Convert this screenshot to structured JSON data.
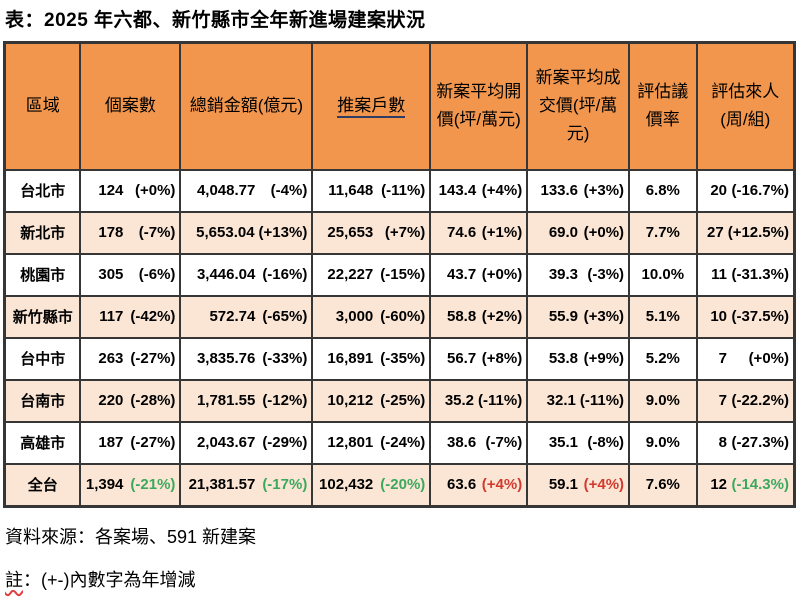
{
  "page": {
    "title": "表：2025 年六都、新竹縣市全年新進場建案狀況",
    "source_note": "資料來源：各案場、591 新建案",
    "note_head": "註",
    "note_rest": "：(+-)內數字為年增減"
  },
  "colors": {
    "header_bg": "#F2964E",
    "band_bg": "#FBE6D5",
    "row_bg": "#FFFFFF",
    "border": "#363636",
    "positive_red": "#D23A2E",
    "negative_green": "#3CA85E",
    "header_underline": "#2E3D66",
    "spellcheck_red": "#E04040"
  },
  "chart_data": {
    "type": "table",
    "title": "表：2025 年六都、新竹縣市全年新進場建案狀況",
    "columns": [
      {
        "label": "區域"
      },
      {
        "label": "個案數"
      },
      {
        "label": "總銷金額(億元)"
      },
      {
        "label": "推案戶數",
        "underline": true
      },
      {
        "label": "新案平均開價(坪/萬元)"
      },
      {
        "label": "新案平均成交價(坪/萬元)"
      },
      {
        "label": "評估議價率"
      },
      {
        "label": "評估來人(周/組)"
      }
    ],
    "rows": [
      {
        "region": "台北市",
        "cells": [
          {
            "value": "124",
            "pct": "(+0%)"
          },
          {
            "value": "4,048.77",
            "pct": "(-4%)"
          },
          {
            "value": "11,648",
            "pct": "(-11%)"
          },
          {
            "value": "143.4",
            "pct": "(+4%)"
          },
          {
            "value": "133.6",
            "pct": "(+3%)"
          },
          {
            "value": "6.8%"
          },
          {
            "value": "20",
            "pct": "(-16.7%)"
          }
        ]
      },
      {
        "region": "新北市",
        "cells": [
          {
            "value": "178",
            "pct": "(-7%)"
          },
          {
            "value": "5,653.04",
            "pct": "(+13%)"
          },
          {
            "value": "25,653",
            "pct": "(+7%)"
          },
          {
            "value": "74.6",
            "pct": "(+1%)"
          },
          {
            "value": "69.0",
            "pct": "(+0%)"
          },
          {
            "value": "7.7%"
          },
          {
            "value": "27",
            "pct": "(+12.5%)"
          }
        ]
      },
      {
        "region": "桃園市",
        "cells": [
          {
            "value": "305",
            "pct": "(-6%)"
          },
          {
            "value": "3,446.04",
            "pct": "(-16%)"
          },
          {
            "value": "22,227",
            "pct": "(-15%)"
          },
          {
            "value": "43.7",
            "pct": "(+0%)"
          },
          {
            "value": "39.3",
            "pct": "(-3%)"
          },
          {
            "value": "10.0%"
          },
          {
            "value": "11",
            "pct": "(-31.3%)"
          }
        ]
      },
      {
        "region": "新竹縣市",
        "cells": [
          {
            "value": "117",
            "pct": "(-42%)"
          },
          {
            "value": "572.74",
            "pct": "(-65%)"
          },
          {
            "value": "3,000",
            "pct": "(-60%)"
          },
          {
            "value": "58.8",
            "pct": "(+2%)"
          },
          {
            "value": "55.9",
            "pct": "(+3%)"
          },
          {
            "value": "5.1%"
          },
          {
            "value": "10",
            "pct": "(-37.5%)"
          }
        ]
      },
      {
        "region": "台中市",
        "cells": [
          {
            "value": "263",
            "pct": "(-27%)"
          },
          {
            "value": "3,835.76",
            "pct": "(-33%)"
          },
          {
            "value": "16,891",
            "pct": "(-35%)"
          },
          {
            "value": "56.7",
            "pct": "(+8%)"
          },
          {
            "value": "53.8",
            "pct": "(+9%)"
          },
          {
            "value": "5.2%"
          },
          {
            "value": "7",
            "pct": "(+0%)"
          }
        ]
      },
      {
        "region": "台南市",
        "cells": [
          {
            "value": "220",
            "pct": "(-28%)"
          },
          {
            "value": "1,781.55",
            "pct": "(-12%)"
          },
          {
            "value": "10,212",
            "pct": "(-25%)"
          },
          {
            "value": "35.2",
            "pct": "(-11%)"
          },
          {
            "value": "32.1",
            "pct": "(-11%)"
          },
          {
            "value": "9.0%"
          },
          {
            "value": "7",
            "pct": "(-22.2%)"
          }
        ]
      },
      {
        "region": "高雄市",
        "cells": [
          {
            "value": "187",
            "pct": "(-27%)"
          },
          {
            "value": "2,043.67",
            "pct": "(-29%)"
          },
          {
            "value": "12,801",
            "pct": "(-24%)"
          },
          {
            "value": "38.6",
            "pct": "(-7%)"
          },
          {
            "value": "35.1",
            "pct": "(-8%)"
          },
          {
            "value": "9.0%"
          },
          {
            "value": "8",
            "pct": "(-27.3%)"
          }
        ]
      },
      {
        "region": "全台",
        "total": true,
        "cells": [
          {
            "value": "1,394",
            "pct": "(-21%)",
            "pct_color": "green"
          },
          {
            "value": "21,381.57",
            "pct": "(-17%)",
            "pct_color": "green"
          },
          {
            "value": "102,432",
            "pct": "(-20%)",
            "pct_color": "green"
          },
          {
            "value": "63.6",
            "pct": "(+4%)",
            "pct_color": "red"
          },
          {
            "value": "59.1",
            "pct": "(+4%)",
            "pct_color": "red"
          },
          {
            "value": "7.6%"
          },
          {
            "value": "12",
            "pct": "(-14.3%)",
            "pct_color": "green"
          }
        ]
      }
    ]
  }
}
